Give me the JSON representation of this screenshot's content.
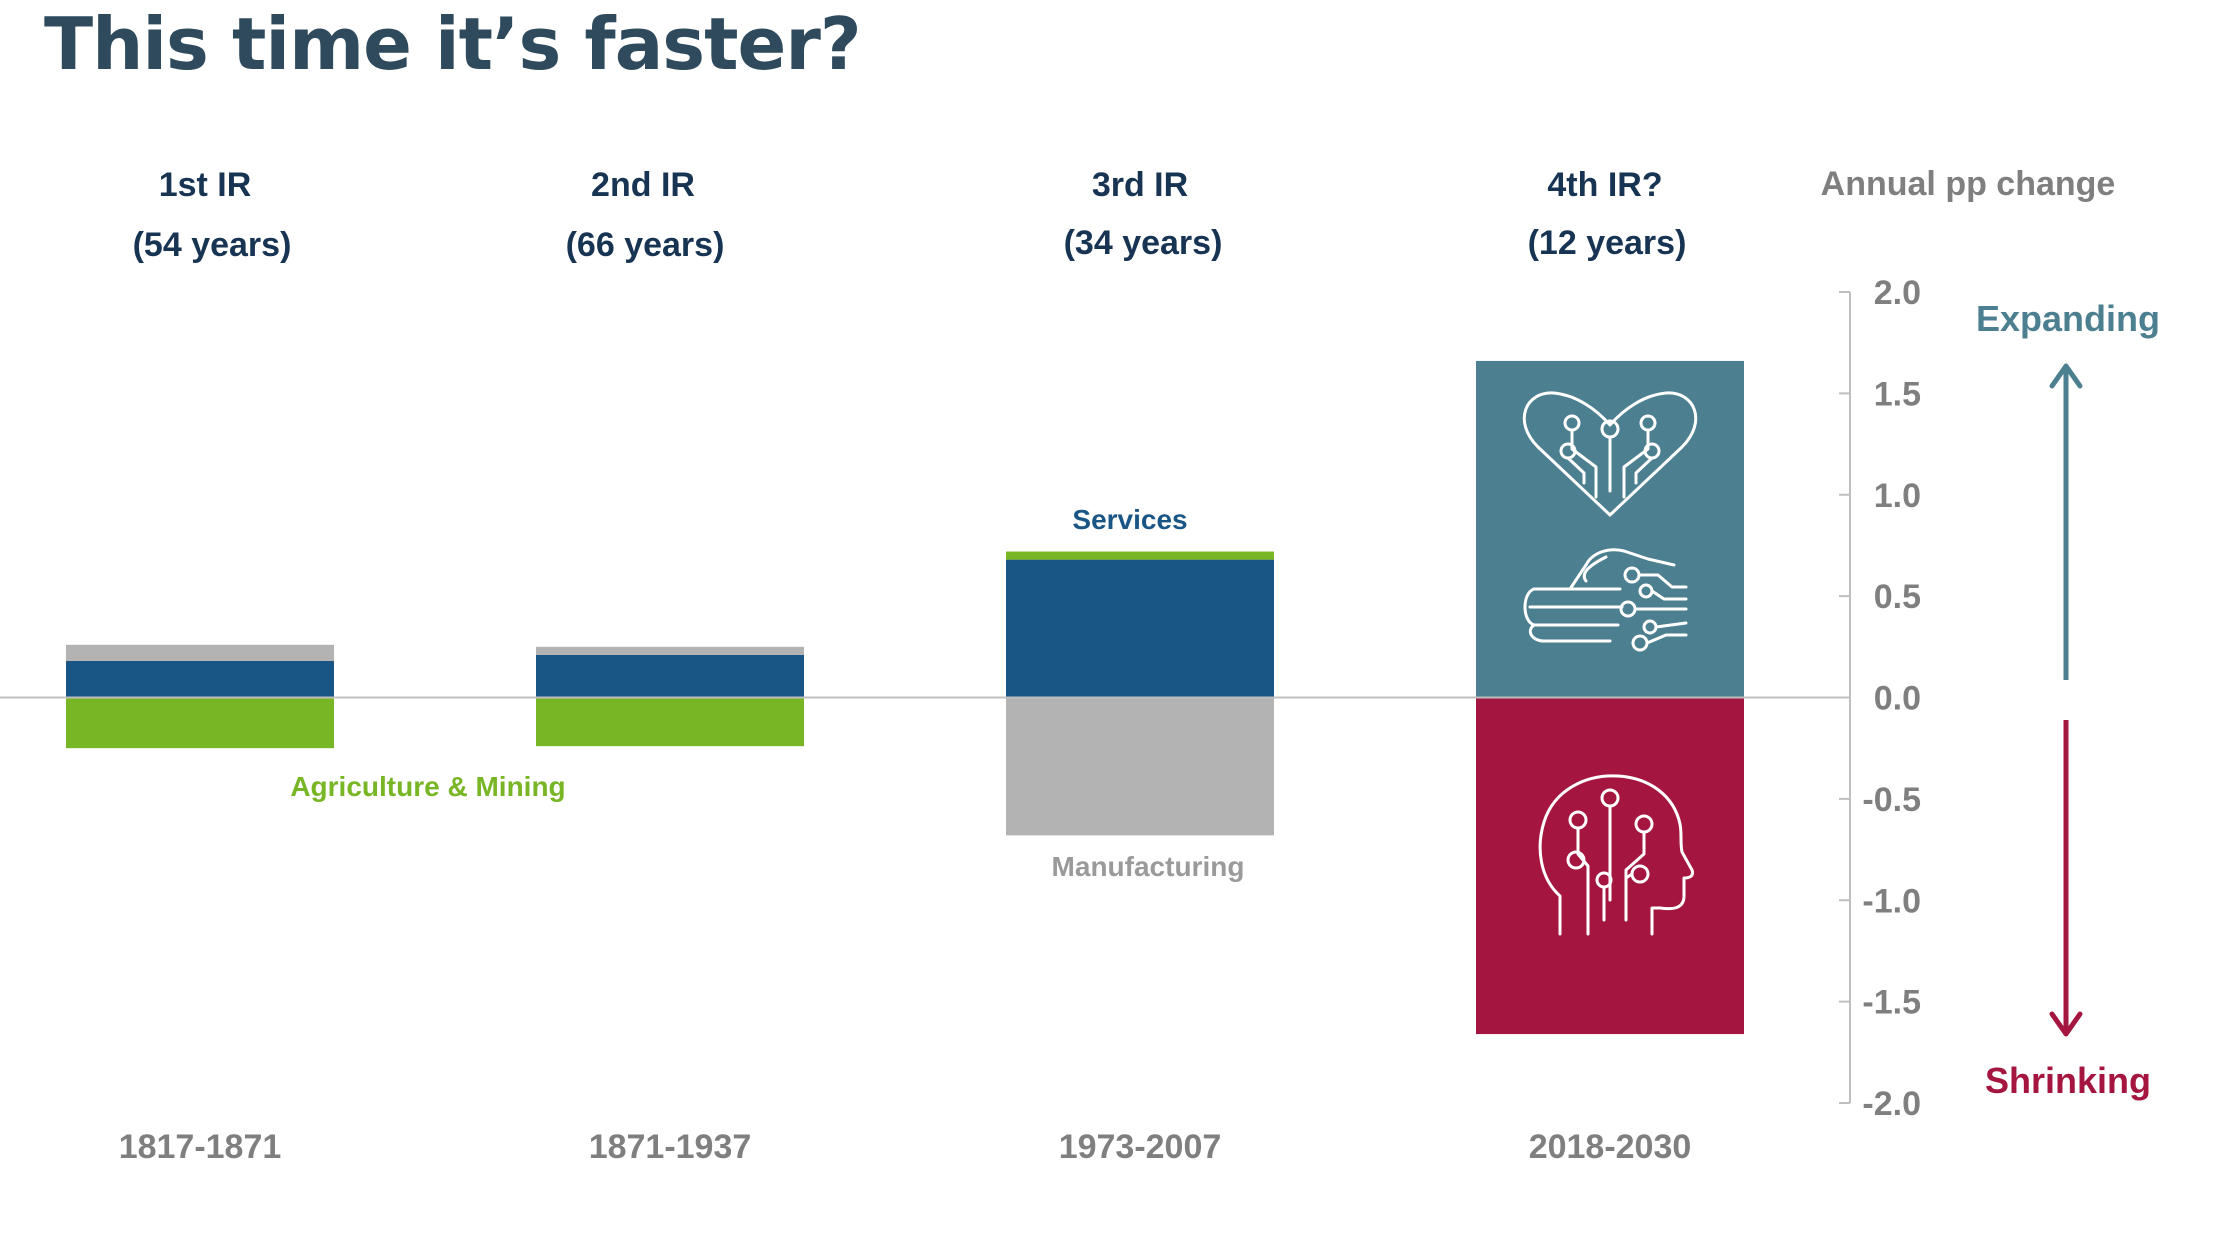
{
  "slide": {
    "title": "This time it’s faster?"
  },
  "colors": {
    "services": "#1a5685",
    "manufacturing": "#b3b3b3",
    "agriculture": "#78b626",
    "expanding": "#4c7f8f",
    "shrinking": "#a4163f",
    "era_label": "#173453",
    "muted": "#7f7f7f"
  },
  "icons": [
    "heart-circuit-icon",
    "hand-circuit-icon",
    "head-circuit-icon"
  ],
  "chart_data": {
    "type": "bar",
    "stacked": "diverging",
    "title": "This time it’s faster?",
    "categories": [
      "1817-1871",
      "1871-1937",
      "1973-2007",
      "2018-2030"
    ],
    "eras": [
      {
        "name": "1st IR",
        "duration": "(54 years)"
      },
      {
        "name": "2nd IR",
        "duration": "(66 years)"
      },
      {
        "name": "3rd IR",
        "duration": "(34 years)"
      },
      {
        "name": "4th IR?",
        "duration": "(12 years)"
      }
    ],
    "series": [
      {
        "name": "Services",
        "values": [
          0.18,
          0.21,
          0.68,
          null
        ]
      },
      {
        "name": "Manufacturing",
        "values": [
          0.08,
          0.04,
          -0.68,
          null
        ]
      },
      {
        "name": "Agriculture & Mining",
        "values": [
          -0.25,
          -0.24,
          0.04,
          null
        ]
      },
      {
        "name": "Expanding",
        "values": [
          null,
          null,
          null,
          1.66
        ]
      },
      {
        "name": "Shrinking",
        "values": [
          null,
          null,
          null,
          -1.66
        ]
      }
    ],
    "ylabel": "Annual pp change",
    "ylim": [
      -2.0,
      2.0
    ],
    "yticks": [
      "2.0",
      "1.5",
      "1.0",
      "0.5",
      "0.0",
      "-0.5",
      "-1.0",
      "-1.5",
      "-2.0"
    ],
    "annotations": {
      "expanding": "Expanding",
      "shrinking": "Shrinking",
      "services": "Services",
      "manufacturing": "Manufacturing",
      "agriculture": "Agriculture & Mining"
    },
    "grid": false,
    "legend": "none"
  }
}
